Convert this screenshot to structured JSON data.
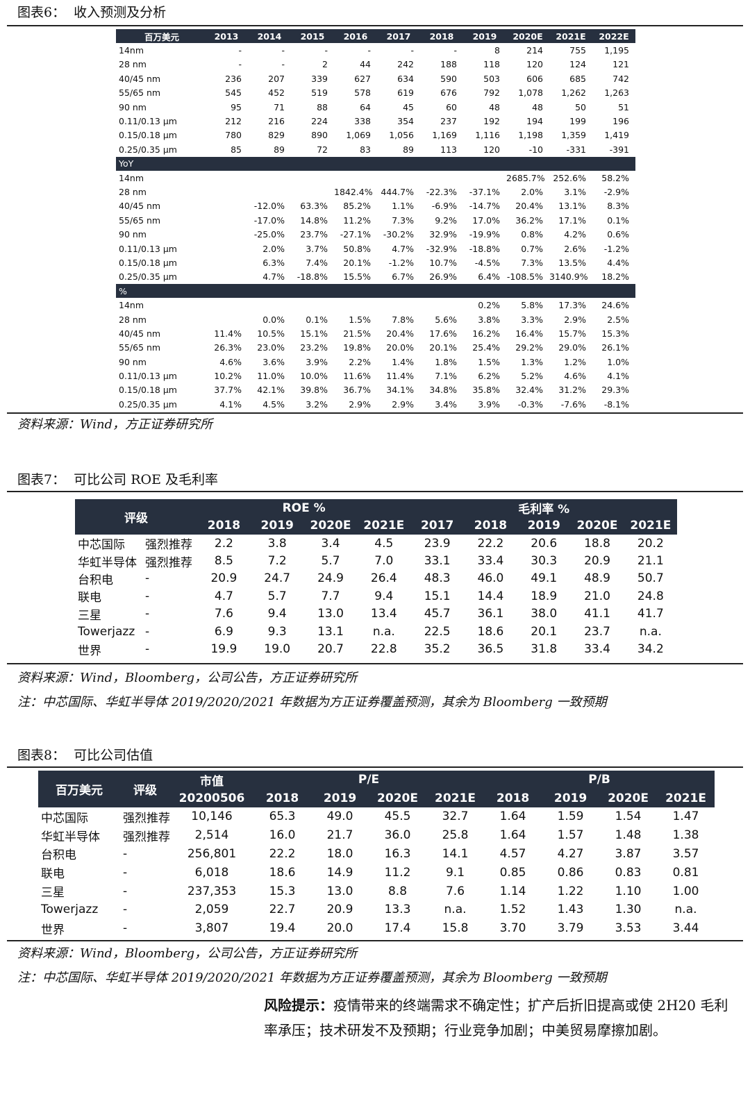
{
  "figure6": {
    "title": "图表6：  收入预测及分析",
    "header": [
      "百万美元",
      "2013",
      "2014",
      "2015",
      "2016",
      "2017",
      "2018",
      "2019",
      "2020E",
      "2021E",
      "2022E"
    ],
    "blocks": [
      {
        "rows": [
          [
            "14nm",
            "-",
            "-",
            "-",
            "-",
            "-",
            "-",
            "8",
            "214",
            "755",
            "1,195"
          ],
          [
            "28 nm",
            "-",
            "-",
            "2",
            "44",
            "242",
            "188",
            "118",
            "120",
            "124",
            "121"
          ],
          [
            "40/45 nm",
            "236",
            "207",
            "339",
            "627",
            "634",
            "590",
            "503",
            "606",
            "685",
            "742"
          ],
          [
            "55/65 nm",
            "545",
            "452",
            "519",
            "578",
            "619",
            "676",
            "792",
            "1,078",
            "1,262",
            "1,263"
          ],
          [
            "90 nm",
            "95",
            "71",
            "88",
            "64",
            "45",
            "60",
            "48",
            "48",
            "50",
            "51"
          ],
          [
            "0.11/0.13 μm",
            "212",
            "216",
            "224",
            "338",
            "354",
            "237",
            "192",
            "194",
            "199",
            "196"
          ],
          [
            "0.15/0.18 μm",
            "780",
            "829",
            "890",
            "1,069",
            "1,056",
            "1,169",
            "1,116",
            "1,198",
            "1,359",
            "1,419"
          ],
          [
            "0.25/0.35 μm",
            "85",
            "89",
            "72",
            "83",
            "89",
            "113",
            "120",
            "-10",
            "-331",
            "-391"
          ]
        ]
      },
      {
        "label": "YoY",
        "rows": [
          [
            "14nm",
            null,
            null,
            null,
            null,
            null,
            null,
            null,
            "2685.7%",
            "252.6%",
            "58.2%"
          ],
          [
            "28 nm",
            null,
            null,
            null,
            "1842.4%",
            "444.7%",
            "-22.3%",
            "-37.1%",
            "2.0%",
            "3.1%",
            "-2.9%"
          ],
          [
            "40/45 nm",
            null,
            "-12.0%",
            "63.3%",
            "85.2%",
            "1.1%",
            "-6.9%",
            "-14.7%",
            "20.4%",
            "13.1%",
            "8.3%"
          ],
          [
            "55/65 nm",
            null,
            "-17.0%",
            "14.8%",
            "11.2%",
            "7.3%",
            "9.2%",
            "17.0%",
            "36.2%",
            "17.1%",
            "0.1%"
          ],
          [
            "90 nm",
            null,
            "-25.0%",
            "23.7%",
            "-27.1%",
            "-30.2%",
            "32.9%",
            "-19.9%",
            "0.8%",
            "4.2%",
            "0.6%"
          ],
          [
            "0.11/0.13 μm",
            null,
            "2.0%",
            "3.7%",
            "50.8%",
            "4.7%",
            "-32.9%",
            "-18.8%",
            "0.7%",
            "2.6%",
            "-1.2%"
          ],
          [
            "0.15/0.18 μm",
            null,
            "6.3%",
            "7.4%",
            "20.1%",
            "-1.2%",
            "10.7%",
            "-4.5%",
            "7.3%",
            "13.5%",
            "4.4%"
          ],
          [
            "0.25/0.35 μm",
            null,
            "4.7%",
            "-18.8%",
            "15.5%",
            "6.7%",
            "26.9%",
            "6.4%",
            "-108.5%",
            "3140.9%",
            "18.2%"
          ]
        ]
      },
      {
        "label": "%",
        "rows": [
          [
            "14nm",
            null,
            null,
            null,
            null,
            null,
            null,
            "0.2%",
            "5.8%",
            "17.3%",
            "24.6%"
          ],
          [
            "28 nm",
            null,
            "0.0%",
            "0.1%",
            "1.5%",
            "7.8%",
            "5.6%",
            "3.8%",
            "3.3%",
            "2.9%",
            "2.5%"
          ],
          [
            "40/45 nm",
            "11.4%",
            "10.5%",
            "15.1%",
            "21.5%",
            "20.4%",
            "17.6%",
            "16.2%",
            "16.4%",
            "15.7%",
            "15.3%"
          ],
          [
            "55/65 nm",
            "26.3%",
            "23.0%",
            "23.2%",
            "19.8%",
            "20.0%",
            "20.1%",
            "25.4%",
            "29.2%",
            "29.0%",
            "26.1%"
          ],
          [
            "90 nm",
            "4.6%",
            "3.6%",
            "3.9%",
            "2.2%",
            "1.4%",
            "1.8%",
            "1.5%",
            "1.3%",
            "1.2%",
            "1.0%"
          ],
          [
            "0.11/0.13 μm",
            "10.2%",
            "11.0%",
            "10.0%",
            "11.6%",
            "11.4%",
            "7.1%",
            "6.2%",
            "5.2%",
            "4.6%",
            "4.1%"
          ],
          [
            "0.15/0.18 μm",
            "37.7%",
            "42.1%",
            "39.8%",
            "36.7%",
            "34.1%",
            "34.8%",
            "35.8%",
            "32.4%",
            "31.2%",
            "29.3%"
          ],
          [
            "0.25/0.35 μm",
            "4.1%",
            "4.5%",
            "3.2%",
            "2.9%",
            "2.9%",
            "3.4%",
            "3.9%",
            "-0.3%",
            "-7.6%",
            "-8.1%"
          ]
        ]
      }
    ],
    "source": "资料来源：Wind，方正证券研究所"
  },
  "figure7": {
    "title": "图表7：  可比公司 ROE 及毛利率",
    "header_top": [
      "评级",
      "ROE %",
      "毛利率 %"
    ],
    "header_years": [
      "2018",
      "2019",
      "2020E",
      "2021E",
      "2017",
      "2018",
      "2019",
      "2020E",
      "2021E"
    ],
    "rows": [
      [
        "中芯国际",
        "强烈推荐",
        "2.2",
        "3.8",
        "3.4",
        "4.5",
        "23.9",
        "22.2",
        "20.6",
        "18.8",
        "20.2"
      ],
      [
        "华虹半导体",
        "强烈推荐",
        "8.5",
        "7.2",
        "5.7",
        "7.0",
        "33.1",
        "33.4",
        "30.3",
        "20.9",
        "21.1"
      ],
      [
        "台积电",
        "-",
        "20.9",
        "24.7",
        "24.9",
        "26.4",
        "48.3",
        "46.0",
        "49.1",
        "48.9",
        "50.7"
      ],
      [
        "联电",
        "-",
        "4.7",
        "5.7",
        "7.7",
        "9.4",
        "15.1",
        "14.4",
        "18.9",
        "21.0",
        "24.8"
      ],
      [
        "三星",
        "-",
        "7.6",
        "9.4",
        "13.0",
        "13.4",
        "45.7",
        "36.1",
        "38.0",
        "41.1",
        "41.7"
      ],
      [
        "Towerjazz",
        "-",
        "6.9",
        "9.3",
        "13.1",
        "n.a.",
        "22.5",
        "18.6",
        "20.1",
        "23.7",
        "n.a."
      ],
      [
        "世界",
        "-",
        "19.9",
        "19.0",
        "20.7",
        "22.8",
        "35.2",
        "36.5",
        "31.8",
        "33.4",
        "34.2"
      ]
    ],
    "source": "资料来源：Wind，Bloomberg，公司公告，方正证券研究所",
    "note": "注：中芯国际、华虹半导体 2019/2020/2021 年数据为方正证券覆盖预测，其余为 Bloomberg 一致预期"
  },
  "figure8": {
    "title": "图表8：  可比公司估值",
    "header_top": [
      "百万美元",
      "评级",
      "市值",
      "P/E",
      "P/B"
    ],
    "header_sub": [
      "20200506",
      "2018",
      "2019",
      "2020E",
      "2021E",
      "2018",
      "2019",
      "2020E",
      "2021E"
    ],
    "rows": [
      [
        "中芯国际",
        "强烈推荐",
        "10,146",
        "65.3",
        "49.0",
        "45.5",
        "32.7",
        "1.64",
        "1.59",
        "1.54",
        "1.47"
      ],
      [
        "华虹半导体",
        "强烈推荐",
        "2,514",
        "16.0",
        "21.7",
        "36.0",
        "25.8",
        "1.64",
        "1.57",
        "1.48",
        "1.38"
      ],
      [
        "台积电",
        "-",
        "256,801",
        "22.2",
        "18.0",
        "16.3",
        "14.1",
        "4.57",
        "4.27",
        "3.87",
        "3.57"
      ],
      [
        "联电",
        "-",
        "6,018",
        "18.6",
        "14.9",
        "11.2",
        "9.1",
        "0.85",
        "0.86",
        "0.83",
        "0.81"
      ],
      [
        "三星",
        "-",
        "237,353",
        "15.3",
        "13.0",
        "8.8",
        "7.6",
        "1.14",
        "1.22",
        "1.10",
        "1.00"
      ],
      [
        "Towerjazz",
        "-",
        "2,059",
        "22.7",
        "20.9",
        "13.3",
        "n.a.",
        "1.52",
        "1.43",
        "1.30",
        "n.a."
      ],
      [
        "世界",
        "-",
        "3,807",
        "19.4",
        "20.0",
        "17.4",
        "15.8",
        "3.70",
        "3.79",
        "3.53",
        "3.44"
      ]
    ],
    "source": "资料来源：Wind，Bloomberg，公司公告，方正证券研究所",
    "note": "注：中芯国际、华虹半导体 2019/2020/2021 年数据为方正证券覆盖预测，其余为 Bloomberg 一致预期"
  },
  "risk": {
    "label": "风险提示：",
    "text": "疫情带来的终端需求不确定性；扩产后折旧提高或使 2H20 毛利率承压；技术研发不及预期；行业竞争加剧；中美贸易摩擦加剧。"
  }
}
